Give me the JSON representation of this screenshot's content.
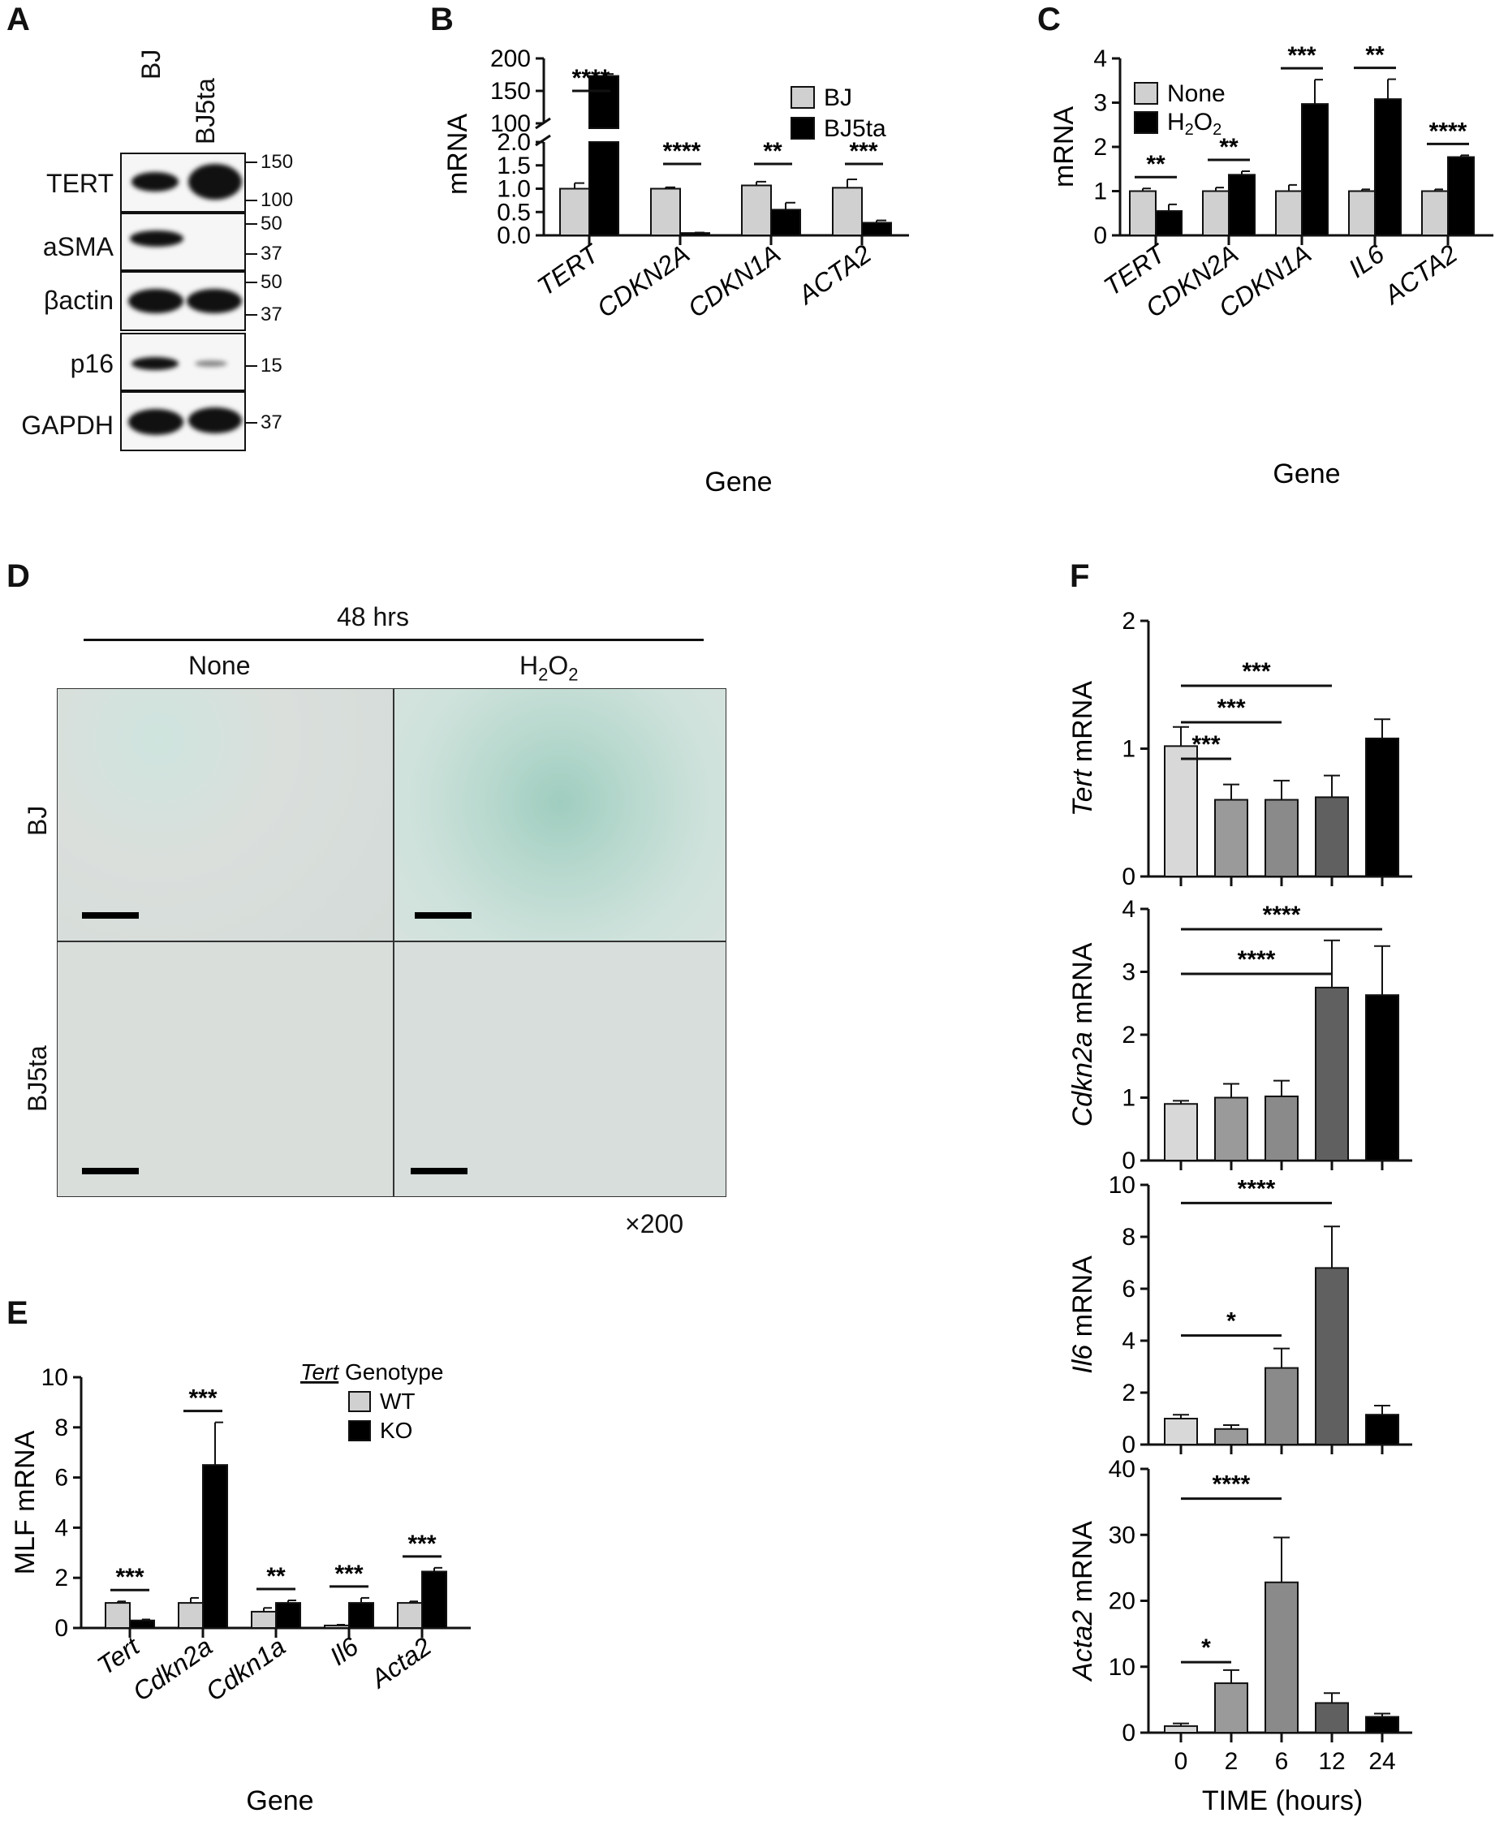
{
  "panels": {
    "A": "A",
    "B": "B",
    "C": "C",
    "D": "D",
    "E": "E",
    "F": "F"
  },
  "panelA": {
    "lanes": [
      "BJ",
      "BJ5ta"
    ],
    "rows": [
      {
        "label": "TERT",
        "markers": [
          "150",
          "100"
        ]
      },
      {
        "label": "aSMA",
        "markers": [
          "50",
          "37"
        ]
      },
      {
        "label": "βactin",
        "markers": [
          "50",
          "37"
        ]
      },
      {
        "label": "p16",
        "markers": [
          "15"
        ]
      },
      {
        "label": "GAPDH",
        "markers": [
          "37"
        ]
      }
    ]
  },
  "panelD": {
    "time_label": "48 hrs",
    "col_none": "None",
    "col_h2o2_main": "H",
    "col_h2o2_sub1": "2",
    "col_h2o2_o": "O",
    "col_h2o2_sub2": "2",
    "row_bj": "BJ",
    "row_bj5ta": "BJ5ta",
    "magnification": "×200"
  },
  "chart_data": [
    {
      "id": "B",
      "type": "bar",
      "ylabel": "mRNA",
      "xlabel": "Gene",
      "categories": [
        "TERT",
        "CDKN2A",
        "CDKN1A",
        "ACTA2"
      ],
      "yaxis_break": {
        "lower": [
          0,
          2.0
        ],
        "upper": [
          100,
          200
        ]
      },
      "lower_ticks": [
        "0.0",
        "0.5",
        "1.0",
        "1.5",
        "2.0"
      ],
      "upper_ticks": [
        "100",
        "150",
        "200"
      ],
      "series": [
        {
          "name": "BJ",
          "color": "#d0d0d0",
          "values": [
            1.0,
            1.0,
            1.07,
            1.02
          ],
          "errors": [
            0.12,
            0.03,
            0.08,
            0.18
          ]
        },
        {
          "name": "BJ5ta",
          "color": "#000000",
          "values": [
            173,
            0.05,
            0.55,
            0.27
          ],
          "errors": [
            3,
            0.01,
            0.15,
            0.05
          ]
        }
      ],
      "significance": [
        "****",
        "****",
        "**",
        "***"
      ]
    },
    {
      "id": "C",
      "type": "bar",
      "ylabel": "mRNA",
      "xlabel": "Gene",
      "categories": [
        "TERT",
        "CDKN2A",
        "CDKN1A",
        "IL6",
        "ACTA2"
      ],
      "ylim": [
        0,
        4
      ],
      "ticks": [
        "0",
        "1",
        "2",
        "3",
        "4"
      ],
      "series": [
        {
          "name": "None",
          "color": "#d0d0d0",
          "values": [
            1.0,
            1.0,
            1.0,
            1.0,
            1.0
          ],
          "errors": [
            0.06,
            0.08,
            0.14,
            0.04,
            0.04
          ]
        },
        {
          "name": "H2O2",
          "color": "#000000",
          "values": [
            0.55,
            1.37,
            2.97,
            3.08,
            1.77
          ],
          "errors": [
            0.15,
            0.08,
            0.55,
            0.45,
            0.04
          ]
        }
      ],
      "legend_h": "H",
      "legend_sub1": "2",
      "legend_o": "O",
      "legend_sub2": "2",
      "significance": [
        "**",
        "**",
        "***",
        "**",
        "****"
      ]
    },
    {
      "id": "E",
      "type": "bar",
      "ylabel": "MLF mRNA",
      "xlabel": "Gene",
      "legend_title_italic": "Tert",
      "legend_title_rest": " Genotype",
      "categories": [
        "Tert",
        "Cdkn2a",
        "Cdkn1a",
        "Il6",
        "Acta2"
      ],
      "ylim": [
        0,
        10
      ],
      "ticks": [
        "0",
        "2",
        "4",
        "6",
        "8",
        "10"
      ],
      "series": [
        {
          "name": "WT",
          "color": "#d0d0d0",
          "values": [
            1.0,
            1.0,
            0.65,
            0.1,
            1.0
          ],
          "errors": [
            0.06,
            0.2,
            0.15,
            0.03,
            0.06
          ]
        },
        {
          "name": "KO",
          "color": "#000000",
          "values": [
            0.3,
            6.5,
            1.0,
            1.0,
            2.25
          ],
          "errors": [
            0.04,
            1.7,
            0.1,
            0.2,
            0.15
          ]
        }
      ],
      "significance": [
        "***",
        "***",
        "**",
        "***",
        "***"
      ]
    },
    {
      "id": "F",
      "type": "bar",
      "xlabel": "TIME (hours)",
      "categories": [
        "0",
        "2",
        "6",
        "12",
        "24"
      ],
      "bar_colors": [
        "#d8d8d8",
        "#9a9a9a",
        "#8a8a8a",
        "#606060",
        "#000000"
      ],
      "subplots": [
        {
          "ylabel_italic": "Tert",
          "ylabel_rest": " mRNA",
          "ylim": [
            0,
            2
          ],
          "ticks": [
            "0",
            "1",
            "2"
          ],
          "values": [
            1.02,
            0.6,
            0.6,
            0.62,
            1.08
          ],
          "errors": [
            0.15,
            0.12,
            0.15,
            0.17,
            0.15
          ],
          "sig": [
            {
              "from": 0,
              "to": 1,
              "label": "***"
            },
            {
              "from": 0,
              "to": 2,
              "label": "***"
            },
            {
              "from": 0,
              "to": 3,
              "label": "***"
            }
          ]
        },
        {
          "ylabel_italic": "Cdkn2a",
          "ylabel_rest": " mRNA",
          "ylim": [
            0,
            4
          ],
          "ticks": [
            "0",
            "1",
            "2",
            "3",
            "4"
          ],
          "values": [
            0.9,
            1.0,
            1.02,
            2.75,
            2.63
          ],
          "errors": [
            0.05,
            0.22,
            0.25,
            0.75,
            0.78
          ],
          "sig": [
            {
              "from": 0,
              "to": 3,
              "label": "****"
            },
            {
              "from": 0,
              "to": 4,
              "label": "****"
            }
          ]
        },
        {
          "ylabel_italic": "Il6",
          "ylabel_rest": " mRNA",
          "ylim": [
            0,
            10
          ],
          "ticks": [
            "0",
            "2",
            "4",
            "6",
            "8",
            "10"
          ],
          "values": [
            1.0,
            0.6,
            2.95,
            6.8,
            1.15
          ],
          "errors": [
            0.15,
            0.15,
            0.75,
            1.6,
            0.35
          ],
          "sig": [
            {
              "from": 0,
              "to": 2,
              "label": "*"
            },
            {
              "from": 0,
              "to": 3,
              "label": "****"
            }
          ]
        },
        {
          "ylabel_italic": "Acta2",
          "ylabel_rest": " mRNA",
          "ylim": [
            0,
            40
          ],
          "ticks": [
            "0",
            "10",
            "20",
            "30",
            "40"
          ],
          "values": [
            1.0,
            7.5,
            22.8,
            4.5,
            2.4
          ],
          "errors": [
            0.4,
            2.0,
            6.8,
            1.5,
            0.5
          ],
          "sig": [
            {
              "from": 0,
              "to": 1,
              "label": "*"
            },
            {
              "from": 0,
              "to": 2,
              "label": "****"
            }
          ]
        }
      ]
    }
  ]
}
